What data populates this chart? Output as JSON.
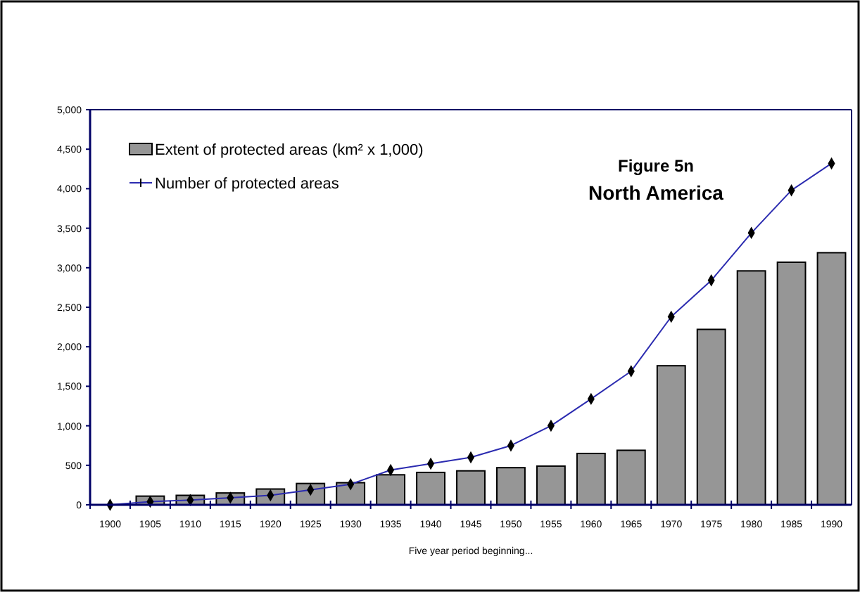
{
  "chart_data": {
    "type": "bar",
    "title": "Figure 5n",
    "subtitle": "North America",
    "xlabel": "Five year period beginning...",
    "categories": [
      "1900",
      "1905",
      "1910",
      "1915",
      "1920",
      "1925",
      "1930",
      "1935",
      "1940",
      "1945",
      "1950",
      "1955",
      "1960",
      "1965",
      "1970",
      "1975",
      "1980",
      "1985",
      "1990"
    ],
    "series": [
      {
        "name": "Extent of protected areas (km² x 1,000)",
        "color": "#969696",
        "values": [
          0,
          110,
          120,
          150,
          200,
          270,
          280,
          380,
          410,
          430,
          470,
          490,
          650,
          690,
          1760,
          2220,
          2960,
          3070,
          3190
        ]
      },
      {
        "name": "Number of protected areas",
        "type": "line",
        "color": "#2b2bb0",
        "marker": "diamond",
        "values": [
          0,
          40,
          60,
          90,
          120,
          190,
          260,
          440,
          520,
          600,
          750,
          1000,
          1340,
          1690,
          2380,
          2840,
          3440,
          3980,
          4320
        ]
      }
    ],
    "ylim": [
      0,
      5000
    ],
    "yticks": [
      {
        "value": 0,
        "label": "0"
      },
      {
        "value": 500,
        "label": "500"
      },
      {
        "value": 1000,
        "label": "1,000"
      },
      {
        "value": 1500,
        "label": "1,500"
      },
      {
        "value": 2000,
        "label": "2,000"
      },
      {
        "value": 2500,
        "label": "2,500"
      },
      {
        "value": 3000,
        "label": "3,000"
      },
      {
        "value": 3500,
        "label": "3,500"
      },
      {
        "value": 4000,
        "label": "4,000"
      },
      {
        "value": 4500,
        "label": "4,500"
      },
      {
        "value": 5000,
        "label": "5,000"
      }
    ],
    "grid": false,
    "legend": "top left"
  }
}
